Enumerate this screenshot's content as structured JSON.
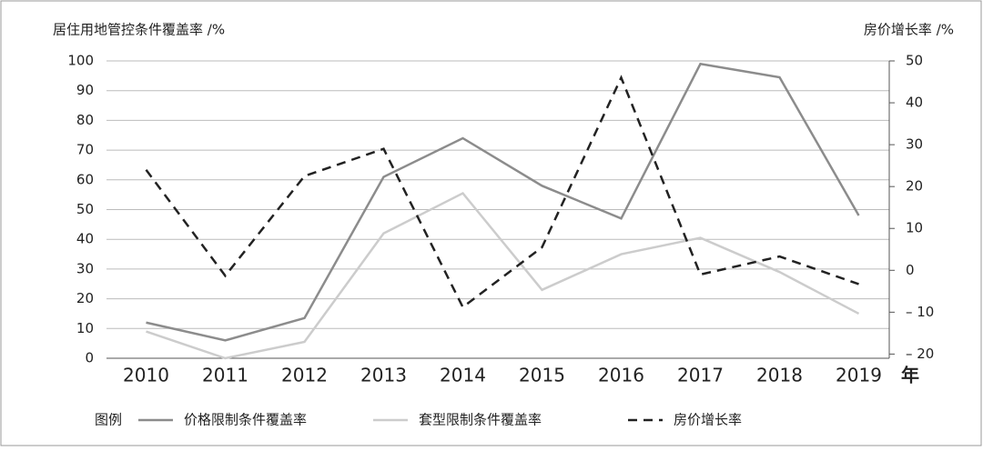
{
  "chart_data": {
    "type": "line",
    "y_label": "居住用地管控条件覆盖率 /%",
    "y2_label": "房价增长率 /%",
    "x_unit": "年",
    "legend_title": "图例",
    "categories": [
      "2010",
      "2011",
      "2012",
      "2013",
      "2014",
      "2015",
      "2016",
      "2017",
      "2018",
      "2019"
    ],
    "series": [
      {
        "name": "价格限制条件覆盖率",
        "color": "#8c8c8c",
        "dash": false,
        "values": [
          12,
          6,
          13.5,
          61,
          74,
          58,
          47,
          99,
          94.5,
          48
        ]
      },
      {
        "name": "套型限制条件覆盖率",
        "color": "#cccccc",
        "dash": false,
        "values": [
          9,
          0,
          5.5,
          42,
          55.5,
          23,
          35,
          40.5,
          29,
          15
        ]
      },
      {
        "name": "房价增长率",
        "color": "#222222",
        "dash": true,
        "axis": "y2",
        "values": [
          24,
          -1.3,
          22.5,
          29,
          -8.8,
          5.5,
          46,
          -1,
          3.3,
          -3.3
        ]
      }
    ],
    "ylim": [
      0,
      100
    ],
    "yticks": [
      0,
      10,
      20,
      30,
      40,
      50,
      60,
      70,
      80,
      90,
      100
    ],
    "y2lim": [
      -21,
      50
    ],
    "y2ticks": [
      {
        "value": -20,
        "label": "– 20"
      },
      {
        "value": -10,
        "label": "– 10"
      },
      0,
      10,
      20,
      30,
      40,
      50
    ],
    "grid": true
  }
}
